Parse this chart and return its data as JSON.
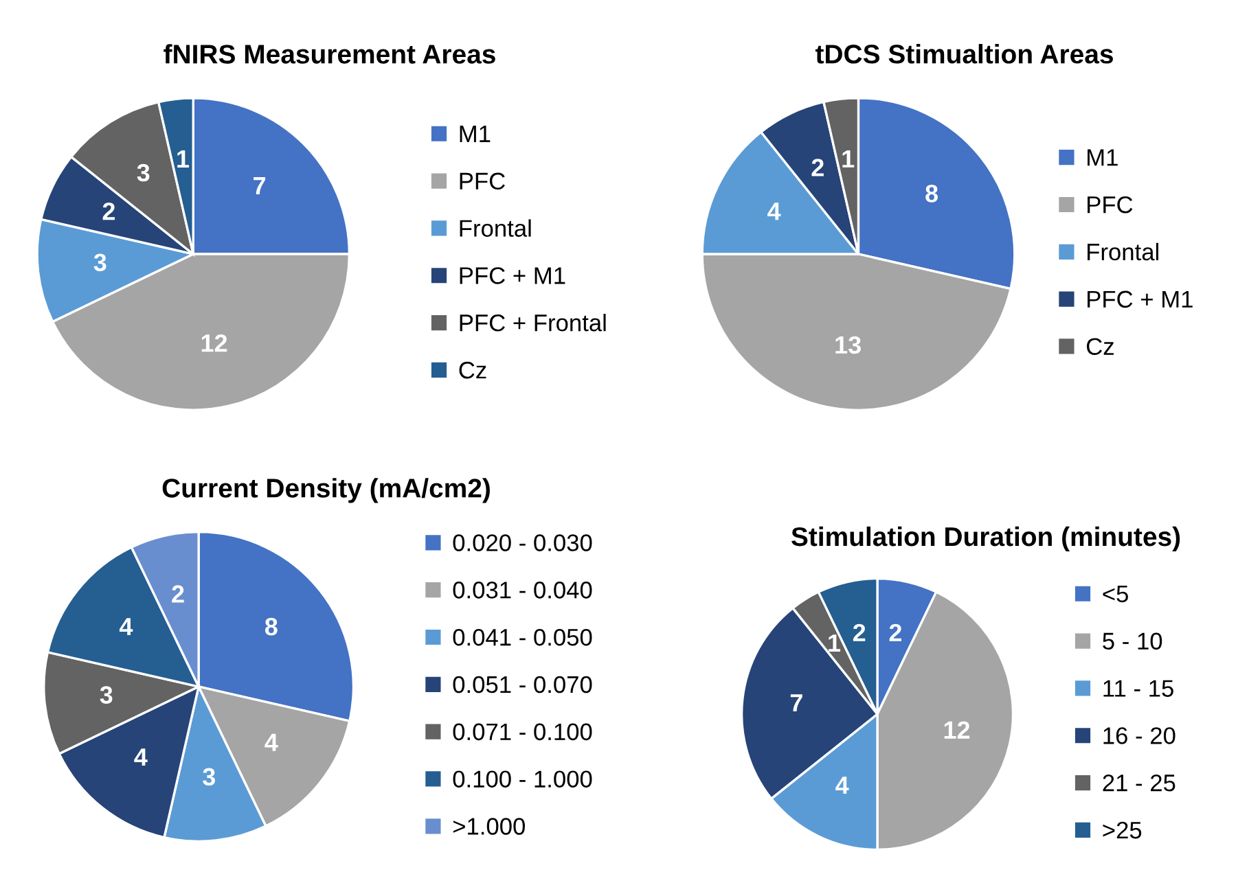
{
  "chart_data": [
    {
      "type": "pie",
      "title": "fNIRS Measurement Areas",
      "categories": [
        "M1",
        "PFC",
        "Frontal",
        "PFC + M1",
        "PFC + Frontal",
        "Cz"
      ],
      "values": [
        7,
        12,
        3,
        2,
        3,
        1
      ],
      "colors": [
        "#4472c4",
        "#a5a5a5",
        "#5b9bd5",
        "#264478",
        "#636363",
        "#255e91"
      ],
      "data_labels": true,
      "legend": "right"
    },
    {
      "type": "pie",
      "title": "tDCS Stimualtion Areas",
      "categories": [
        "M1",
        "PFC",
        "Frontal",
        "PFC + M1",
        "Cz"
      ],
      "values": [
        8,
        13,
        4,
        2,
        1
      ],
      "colors": [
        "#4472c4",
        "#a5a5a5",
        "#5b9bd5",
        "#264478",
        "#636363"
      ],
      "data_labels": true,
      "legend": "right"
    },
    {
      "type": "pie",
      "title": "Current Density (mA/cm2)",
      "categories": [
        "0.020 - 0.030",
        "0.031 - 0.040",
        "0.041 - 0.050",
        "0.051 - 0.070",
        "0.071 - 0.100",
        "0.100 - 1.000",
        ">1.000"
      ],
      "values": [
        8,
        4,
        3,
        4,
        3,
        4,
        2
      ],
      "colors": [
        "#4472c4",
        "#a5a5a5",
        "#5b9bd5",
        "#264478",
        "#636363",
        "#255e91",
        "#698ed0"
      ],
      "data_labels": true,
      "legend": "right"
    },
    {
      "type": "pie",
      "title": "Stimulation Duration (minutes)",
      "categories": [
        "<5",
        "5 - 10",
        "11 - 15",
        "16 - 20",
        "21 - 25",
        ">25"
      ],
      "values": [
        2,
        12,
        4,
        7,
        1,
        2
      ],
      "colors": [
        "#4472c4",
        "#a5a5a5",
        "#5b9bd5",
        "#264478",
        "#636363",
        "#255e91"
      ],
      "data_labels": true,
      "legend": "right"
    }
  ]
}
